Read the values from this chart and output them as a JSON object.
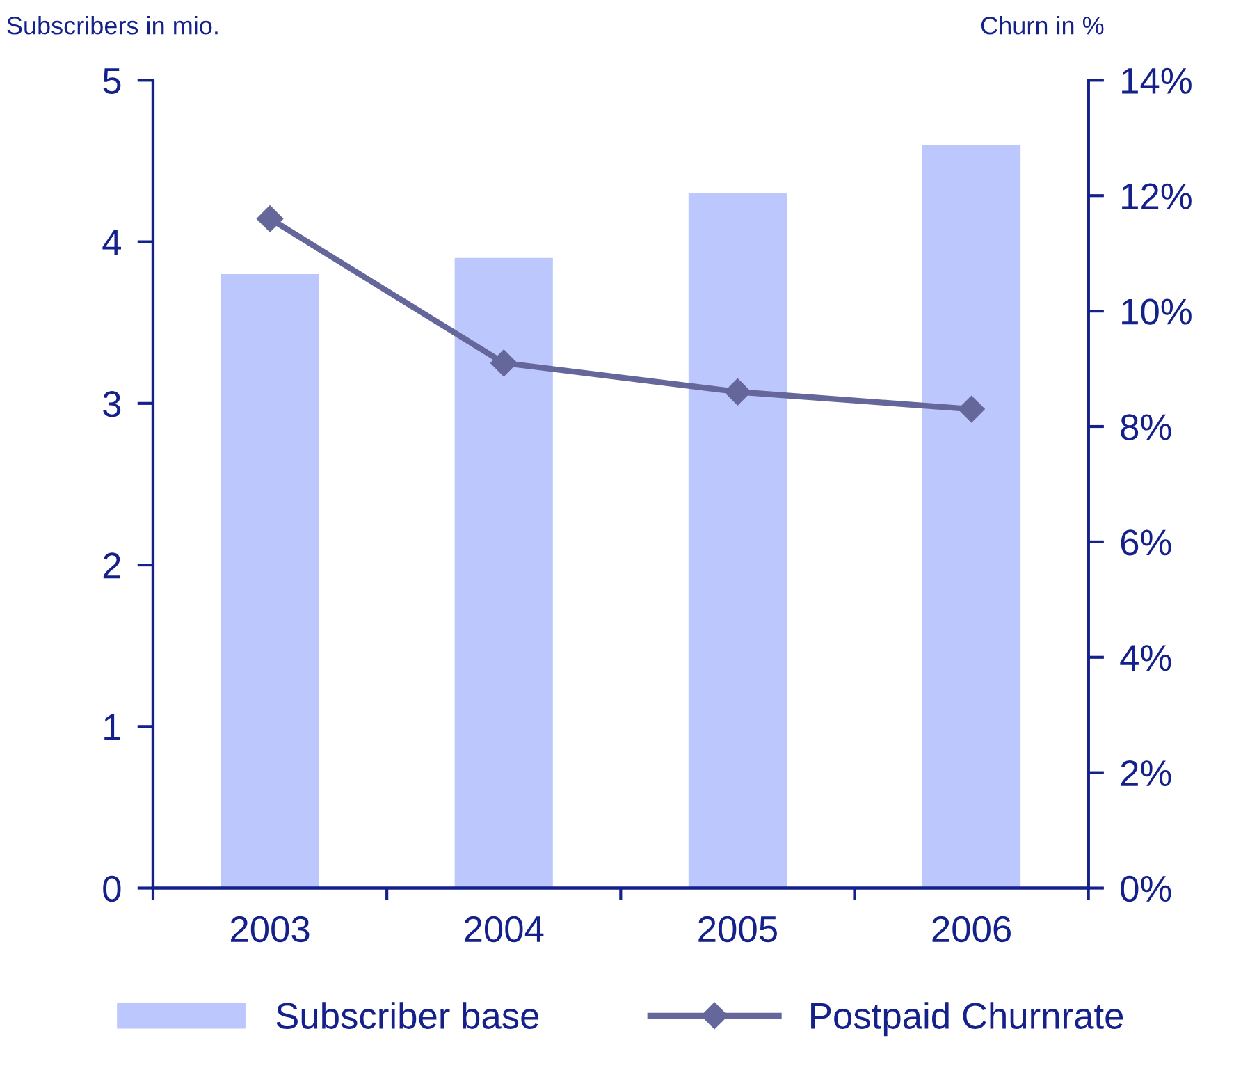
{
  "chart_data": {
    "type": "bar",
    "categories": [
      "2003",
      "2004",
      "2005",
      "2006"
    ],
    "ylabel": "Subscribers in mio.",
    "y2label": "Churn in %",
    "series": [
      {
        "name": "Subscriber base",
        "color": "#bcc8fd",
        "values": [
          3.8,
          3.9,
          4.3,
          4.6
        ]
      },
      {
        "name": "Postpaid Churnrate",
        "type": "line",
        "axis": "y2",
        "color": "#65669a",
        "marker": "diamond",
        "values": [
          11.6,
          9.1,
          8.6,
          8.3
        ]
      }
    ],
    "ylim": [
      0,
      5
    ],
    "yticks": [
      0,
      1,
      2,
      3,
      4,
      5
    ],
    "y2lim": [
      0,
      14
    ],
    "y2ticks": [
      {
        "value": 0,
        "label": "0%"
      },
      {
        "value": 2,
        "label": "2%"
      },
      {
        "value": 4,
        "label": "4%"
      },
      {
        "value": 6,
        "label": "6%"
      },
      {
        "value": 8,
        "label": "8%"
      },
      {
        "value": 10,
        "label": "10%"
      },
      {
        "value": 12,
        "label": "12%"
      },
      {
        "value": 14,
        "label": "14%"
      }
    ],
    "grid": false,
    "legend": "bottom"
  }
}
